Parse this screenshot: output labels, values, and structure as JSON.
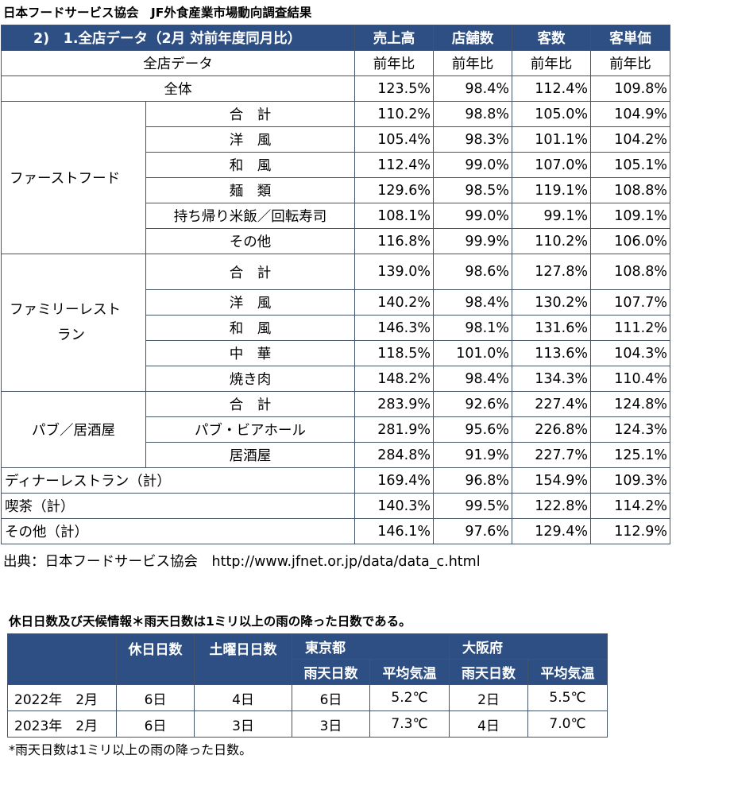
{
  "title": "日本フードサービス協会　JF外食産業市場動向調査結果",
  "main_table": {
    "header": {
      "label": "2)　1.全店データ（2月 対前年度同月比）",
      "columns": [
        "売上高",
        "店舗数",
        "客数",
        "客単価"
      ]
    },
    "subheader": {
      "label": "全店データ",
      "values": [
        "前年比",
        "前年比",
        "前年比",
        "前年比"
      ]
    },
    "overall": {
      "label": "全体",
      "values": [
        "123.5%",
        "98.4%",
        "112.4%",
        "109.8%"
      ]
    },
    "groups": [
      {
        "name": "ファーストフード",
        "rows": [
          {
            "label": "合　計",
            "values": [
              "110.2%",
              "98.8%",
              "105.0%",
              "104.9%"
            ]
          },
          {
            "label": "洋　風",
            "values": [
              "105.4%",
              "98.3%",
              "101.1%",
              "104.2%"
            ]
          },
          {
            "label": "和　風",
            "values": [
              "112.4%",
              "99.0%",
              "107.0%",
              "105.1%"
            ]
          },
          {
            "label": "麺　類",
            "values": [
              "129.6%",
              "98.5%",
              "119.1%",
              "108.8%"
            ]
          },
          {
            "label": "持ち帰り米飯／回転寿司",
            "values": [
              "108.1%",
              "99.0%",
              "99.1%",
              "109.1%"
            ]
          },
          {
            "label": "その他",
            "values": [
              "116.8%",
              "99.9%",
              "110.2%",
              "106.0%"
            ]
          }
        ]
      },
      {
        "name_line1": "ファミリーレスト",
        "name_line2": "ラン",
        "rows": [
          {
            "label": "合　計",
            "values": [
              "139.0%",
              "98.6%",
              "127.8%",
              "108.8%"
            ]
          },
          {
            "label": "洋　風",
            "values": [
              "140.2%",
              "98.4%",
              "130.2%",
              "107.7%"
            ]
          },
          {
            "label": "和　風",
            "values": [
              "146.3%",
              "98.1%",
              "131.6%",
              "111.2%"
            ]
          },
          {
            "label": "中　華",
            "values": [
              "118.5%",
              "101.0%",
              "113.6%",
              "104.3%"
            ]
          },
          {
            "label": "焼き肉",
            "values": [
              "148.2%",
              "98.4%",
              "134.3%",
              "110.4%"
            ]
          }
        ]
      },
      {
        "name": "パブ／居酒屋",
        "rows": [
          {
            "label": "合　計",
            "values": [
              "283.9%",
              "92.6%",
              "227.4%",
              "124.8%"
            ]
          },
          {
            "label": "パブ・ビアホール",
            "values": [
              "281.9%",
              "95.6%",
              "226.8%",
              "124.3%"
            ]
          },
          {
            "label": "居酒屋",
            "values": [
              "284.8%",
              "91.9%",
              "227.7%",
              "125.1%"
            ]
          }
        ]
      }
    ],
    "others": [
      {
        "label": "ディナーレストラン（計）",
        "values": [
          "169.4%",
          "96.8%",
          "154.9%",
          "109.3%"
        ]
      },
      {
        "label": "喫茶（計）",
        "values": [
          "140.3%",
          "99.5%",
          "122.8%",
          "114.2%"
        ]
      },
      {
        "label": "その他（計）",
        "values": [
          "146.1%",
          "97.6%",
          "129.4%",
          "112.9%"
        ]
      }
    ]
  },
  "source": "出典：日本フードサービス協会　http://www.jfnet.or.jp/data/data_c.html",
  "weather": {
    "title": "休日日数及び天候情報＊雨天日数は1ミリ以上の雨の降った日数である。",
    "headers": {
      "holidays": "休日日数",
      "saturdays": "土曜日日数",
      "tokyo": "東京都",
      "osaka": "大阪府",
      "rain_days": "雨天日数",
      "avg_temp": "平均気温"
    },
    "rows": [
      {
        "label": "2022年　2月",
        "values": [
          "6日",
          "4日",
          "6日",
          "5.2℃",
          "2日",
          "5.5℃"
        ]
      },
      {
        "label": "2023年　2月",
        "values": [
          "6日",
          "3日",
          "3日",
          "7.3℃",
          "4日",
          "7.0℃"
        ]
      }
    ],
    "note": "*雨天日数は1ミリ以上の雨の降った日数。"
  },
  "colors": {
    "header_bg": "#2e4f83",
    "header_text": "#ffffff",
    "border": "#44546a"
  }
}
